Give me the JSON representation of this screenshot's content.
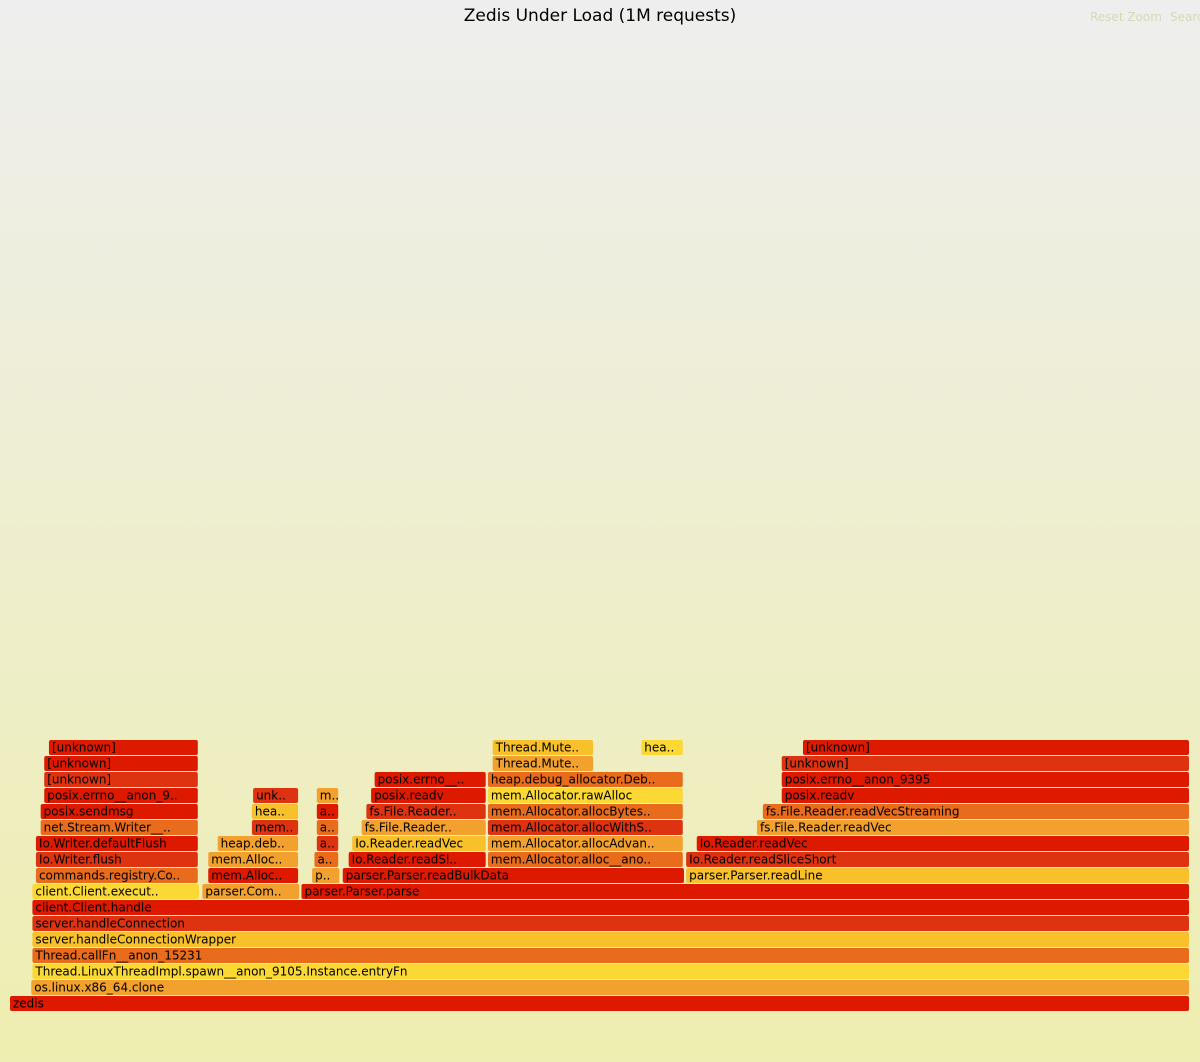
{
  "title": "Zedis Under Load (1M requests)",
  "controls": {
    "reset_zoom": "Reset Zoom",
    "search": "Search"
  },
  "chart_data": {
    "type": "flamegraph",
    "title": "Zedis Under Load (1M requests)",
    "total_samples": 1000,
    "frames": [
      {
        "name": "zedis",
        "start": 0,
        "width": 1000,
        "depth": 1,
        "color": "#dd1a00"
      },
      {
        "name": "os.linux.x86_64.clone",
        "start": 18,
        "width": 982,
        "depth": 2,
        "color": "#f2a12e"
      },
      {
        "name": "Thread.LinuxThreadImpl.spawn__anon_9105.Instance.entryFn",
        "start": 19,
        "width": 981,
        "depth": 3,
        "color": "#fbd834"
      },
      {
        "name": "Thread.callFn__anon_15231",
        "start": 19,
        "width": 981,
        "depth": 4,
        "color": "#e86c1c"
      },
      {
        "name": "server.handleConnectionWrapper",
        "start": 19,
        "width": 981,
        "depth": 5,
        "color": "#f8c12c"
      },
      {
        "name": "server.handleConnection",
        "start": 19,
        "width": 981,
        "depth": 6,
        "color": "#dd3310"
      },
      {
        "name": "client.Client.handle",
        "start": 19,
        "width": 981,
        "depth": 7,
        "color": "#dd1a00"
      },
      {
        "name": "client.Client.execute..",
        "start": 19,
        "width": 142,
        "depth": 8,
        "color": "#fbd834"
      },
      {
        "name": "parser.Comma..",
        "start": 163,
        "width": 83,
        "depth": 8,
        "color": "#f2a12e"
      },
      {
        "name": "parser.Parser.parse",
        "start": 247,
        "width": 753,
        "depth": 8,
        "color": "#dd1a00"
      },
      {
        "name": "commands.registry.Com..",
        "start": 22,
        "width": 138,
        "depth": 9,
        "color": "#e86c1c"
      },
      {
        "name": "mem.Allocat..",
        "start": 168,
        "width": 77,
        "depth": 9,
        "color": "#dd1a00"
      },
      {
        "name": "pa..",
        "start": 256,
        "width": 24,
        "depth": 9,
        "color": "#f2a12e"
      },
      {
        "name": "parser.Parser.readBulkData",
        "start": 282,
        "width": 290,
        "depth": 9,
        "color": "#dd1a00"
      },
      {
        "name": "parser.Parser.readLine",
        "start": 573,
        "width": 427,
        "depth": 9,
        "color": "#f8c12c"
      },
      {
        "name": "Io.Writer.flush",
        "start": 22,
        "width": 138,
        "depth": 10,
        "color": "#dd3310"
      },
      {
        "name": "mem.Alloca..",
        "start": 168,
        "width": 77,
        "depth": 10,
        "color": "#f2a12e"
      },
      {
        "name": "ar..",
        "start": 258,
        "width": 21,
        "depth": 10,
        "color": "#e86c1c"
      },
      {
        "name": "Io.Reader.readSlic..",
        "start": 287,
        "width": 117,
        "depth": 10,
        "color": "#dd1a00"
      },
      {
        "name": "mem.Allocator.alloc__anon..",
        "start": 405,
        "width": 166,
        "depth": 10,
        "color": "#e86c1c"
      },
      {
        "name": "Io.Reader.readSliceShort",
        "start": 573,
        "width": 427,
        "depth": 10,
        "color": "#dd3310"
      },
      {
        "name": "Io.Writer.defaultFlush",
        "start": 22,
        "width": 138,
        "depth": 11,
        "color": "#dd1a00"
      },
      {
        "name": "heap.debug..",
        "start": 176,
        "width": 69,
        "depth": 11,
        "color": "#f2a12e"
      },
      {
        "name": "ar..",
        "start": 260,
        "width": 19,
        "depth": 11,
        "color": "#dd3310"
      },
      {
        "name": "Io.Reader.readVec",
        "start": 290,
        "width": 114,
        "depth": 11,
        "color": "#f8c12c"
      },
      {
        "name": "mem.Allocator.allocAdvanc..",
        "start": 405,
        "width": 166,
        "depth": 11,
        "color": "#f2a12e"
      },
      {
        "name": "Io.Reader.readVec",
        "start": 582,
        "width": 418,
        "depth": 11,
        "color": "#dd1a00"
      },
      {
        "name": "net.Stream.Writer__s..",
        "start": 26,
        "width": 134,
        "depth": 12,
        "color": "#e86c1c"
      },
      {
        "name": "mem.A..",
        "start": 205,
        "width": 40,
        "depth": 12,
        "color": "#dd3310"
      },
      {
        "name": "ar..",
        "start": 260,
        "width": 19,
        "depth": 12,
        "color": "#e86c1c"
      },
      {
        "name": "fs.File.Reader..",
        "start": 298,
        "width": 106,
        "depth": 12,
        "color": "#f2a12e"
      },
      {
        "name": "mem.Allocator.allocWithSi..",
        "start": 405,
        "width": 166,
        "depth": 12,
        "color": "#dd3310"
      },
      {
        "name": "fs.File.Reader.readVec",
        "start": 633,
        "width": 367,
        "depth": 12,
        "color": "#f2a12e"
      },
      {
        "name": "posix.sendmsg",
        "start": 26,
        "width": 134,
        "depth": 13,
        "color": "#dd1a00"
      },
      {
        "name": "heap..",
        "start": 205,
        "width": 40,
        "depth": 13,
        "color": "#f8c12c"
      },
      {
        "name": "ar..",
        "start": 260,
        "width": 19,
        "depth": 13,
        "color": "#dd1a00"
      },
      {
        "name": "fs.File.Reader...",
        "start": 302,
        "width": 102,
        "depth": 13,
        "color": "#dd3310"
      },
      {
        "name": "mem.Allocator.allocBytesW..",
        "start": 405,
        "width": 166,
        "depth": 13,
        "color": "#e86c1c"
      },
      {
        "name": "fs.File.Reader.readVecStreaming",
        "start": 638,
        "width": 362,
        "depth": 13,
        "color": "#e86c1c"
      },
      {
        "name": "posix.errno__anon_9395",
        "start": 29,
        "width": 131,
        "depth": 14,
        "color": "#dd1a00"
      },
      {
        "name": "unk..",
        "start": 206,
        "width": 39,
        "depth": 14,
        "color": "#dd3310"
      },
      {
        "name": "me..",
        "start": 260,
        "width": 19,
        "depth": 14,
        "color": "#f2a12e"
      },
      {
        "name": "posix.readv",
        "start": 306,
        "width": 98,
        "depth": 14,
        "color": "#dd1a00"
      },
      {
        "name": "mem.Allocator.rawAlloc",
        "start": 405,
        "width": 166,
        "depth": 14,
        "color": "#fbd834"
      },
      {
        "name": "posix.readv",
        "start": 654,
        "width": 346,
        "depth": 14,
        "color": "#dd1a00"
      },
      {
        "name": "[unknown]",
        "start": 29,
        "width": 131,
        "depth": 15,
        "color": "#dd3310"
      },
      {
        "name": "posix.errno__a..",
        "start": 309,
        "width": 95,
        "depth": 15,
        "color": "#dd1a00"
      },
      {
        "name": "heap.debug_allocator.Debu..",
        "start": 405,
        "width": 166,
        "depth": 15,
        "color": "#e86c1c"
      },
      {
        "name": "posix.errno__anon_9395",
        "start": 654,
        "width": 346,
        "depth": 15,
        "color": "#dd1a00"
      },
      {
        "name": "[unknown]",
        "start": 29,
        "width": 131,
        "depth": 16,
        "color": "#dd1a00"
      },
      {
        "name": "Thread.Mutex..",
        "start": 409,
        "width": 86,
        "depth": 16,
        "color": "#f2a12e"
      },
      {
        "name": "[unknown]",
        "start": 654,
        "width": 346,
        "depth": 16,
        "color": "#dd3310"
      },
      {
        "name": "[unknown]",
        "start": 33,
        "width": 127,
        "depth": 17,
        "color": "#dd1a00"
      },
      {
        "name": "Thread.Mutex..",
        "start": 409,
        "width": 86,
        "depth": 17,
        "color": "#f8c12c"
      },
      {
        "name": "hea..",
        "start": 535,
        "width": 36,
        "depth": 17,
        "color": "#fbd834"
      },
      {
        "name": "[unknown]",
        "start": 672,
        "width": 328,
        "depth": 17,
        "color": "#dd1a00"
      }
    ]
  }
}
